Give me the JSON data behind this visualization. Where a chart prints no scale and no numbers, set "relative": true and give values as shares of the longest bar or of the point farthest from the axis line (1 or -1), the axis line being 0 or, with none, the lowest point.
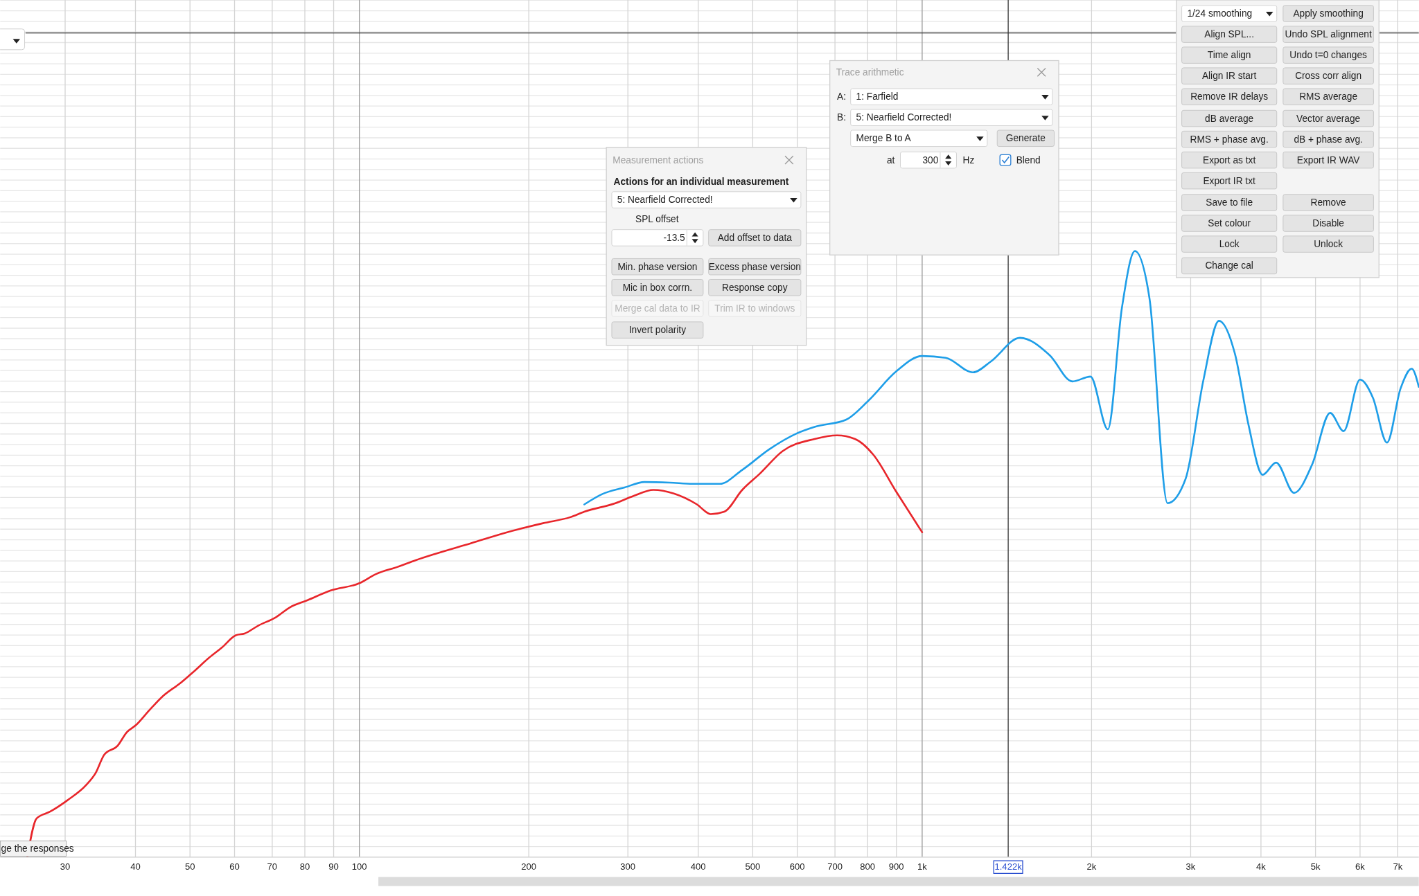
{
  "chart_data": {
    "type": "line",
    "relative": true,
    "grid": true,
    "tick_labels": "x",
    "xlim": [
      23,
      7630
    ],
    "log": "x",
    "xticks": [
      30,
      40,
      50,
      60,
      70,
      80,
      90,
      100,
      200,
      300,
      400,
      500,
      600,
      700,
      800,
      900,
      {
        "value": 1000,
        "label": "1k"
      },
      {
        "value": 2000,
        "label": "2k"
      },
      {
        "value": 3000,
        "label": "3k"
      },
      {
        "value": 4000,
        "label": "4k"
      },
      {
        "value": 5000,
        "label": "5k"
      },
      {
        "value": 6000,
        "label": "6k"
      },
      {
        "value": 7000,
        "label": "7k"
      }
    ],
    "ref_lines": [
      {
        "axis": "x",
        "value": 1422,
        "label": "1.422k",
        "color": "#333333"
      },
      {
        "axis": "y",
        "value": 1.36,
        "color": "#333333"
      }
    ],
    "series": [
      {
        "color": "#e8262b",
        "x": [
          25.7,
          26.7,
          28.2,
          30.3,
          32.7,
          34.0,
          35.2,
          37.2,
          38.6,
          40.1,
          42.4,
          44.8,
          48.2,
          50.9,
          53.9,
          57.0,
          60.3,
          62.5,
          66.1,
          71.1,
          75.2,
          80.9,
          88.9,
          100,
          107,
          117,
          126,
          136,
          158,
          183,
          212,
          237,
          251,
          285,
          307,
          333,
          362,
          398,
          421,
          445,
          479,
          515,
          565,
          644,
          706,
          760,
          819,
          898,
          1000
        ],
        "values": [
          0,
          0.064,
          0.075,
          0.094,
          0.119,
          0.139,
          0.169,
          0.184,
          0.206,
          0.218,
          0.243,
          0.266,
          0.288,
          0.307,
          0.328,
          0.346,
          0.366,
          0.369,
          0.382,
          0.396,
          0.412,
          0.424,
          0.44,
          0.452,
          0.467,
          0.479,
          0.49,
          0.5,
          0.518,
          0.536,
          0.551,
          0.561,
          0.57,
          0.584,
          0.596,
          0.606,
          0.6,
          0.582,
          0.566,
          0.57,
          0.606,
          0.633,
          0.67,
          0.69,
          0.696,
          0.69,
          0.664,
          0.604,
          0.536
        ]
      },
      {
        "color": "#1e9ee8",
        "x": [
          251,
          270,
          296,
          321,
          356,
          391,
          437,
          479,
          535,
          598,
          644,
          733,
          804,
          898,
          1000,
          1101,
          1231,
          1325,
          1492,
          1686,
          1849,
          1991,
          2138,
          2265,
          2388,
          2535,
          2729,
          2938,
          3162,
          3368,
          3597,
          3802,
          4027,
          4256,
          4581,
          4932,
          5309,
          5610,
          5998,
          6324,
          6699,
          7079,
          7413,
          7630
        ],
        "values": [
          0.582,
          0.599,
          0.61,
          0.619,
          0.618,
          0.616,
          0.616,
          0.639,
          0.673,
          0.699,
          0.71,
          0.722,
          0.754,
          0.801,
          0.827,
          0.824,
          0.8,
          0.818,
          0.857,
          0.828,
          0.785,
          0.793,
          0.706,
          0.907,
          1,
          0.922,
          0.584,
          0.624,
          0.788,
          0.885,
          0.83,
          0.713,
          0.631,
          0.651,
          0.601,
          0.648,
          0.733,
          0.703,
          0.788,
          0.758,
          0.684,
          0.773,
          0.806,
          0.776
        ]
      }
    ],
    "annotations": [
      "ge the responses",
      "Measurement actions",
      "Actions for an individual measurement",
      "5: Nearfield Corrected!",
      "SPL offset",
      "-13.5",
      "Add offset to data",
      "Min. phase version",
      "Excess phase version",
      "Mic in box corrn.",
      "Response copy",
      "Merge cal data to IR",
      "Trim IR to windows",
      "Invert polarity",
      "Trace arithmetic",
      "A:",
      "1: Farfield",
      "B:",
      "5: Nearfield Corrected!",
      "Merge B to A",
      "Generate",
      "at",
      "300",
      "Hz",
      "Blend",
      "1/24 smoothing",
      "Apply smoothing",
      "Align SPL...",
      "Undo SPL alignment",
      "Time align",
      "Undo t=0 changes",
      "Align IR start",
      "Cross corr align",
      "Remove IR delays",
      "RMS average",
      "dB average",
      "Vector average",
      "RMS + phase avg.",
      "dB + phase avg.",
      "Export as txt",
      "Export IR WAV",
      "Export IR txt",
      "Save to file",
      "Remove",
      "Set colour",
      "Disable",
      "Lock",
      "Unlock",
      "Change cal"
    ]
  }
}
